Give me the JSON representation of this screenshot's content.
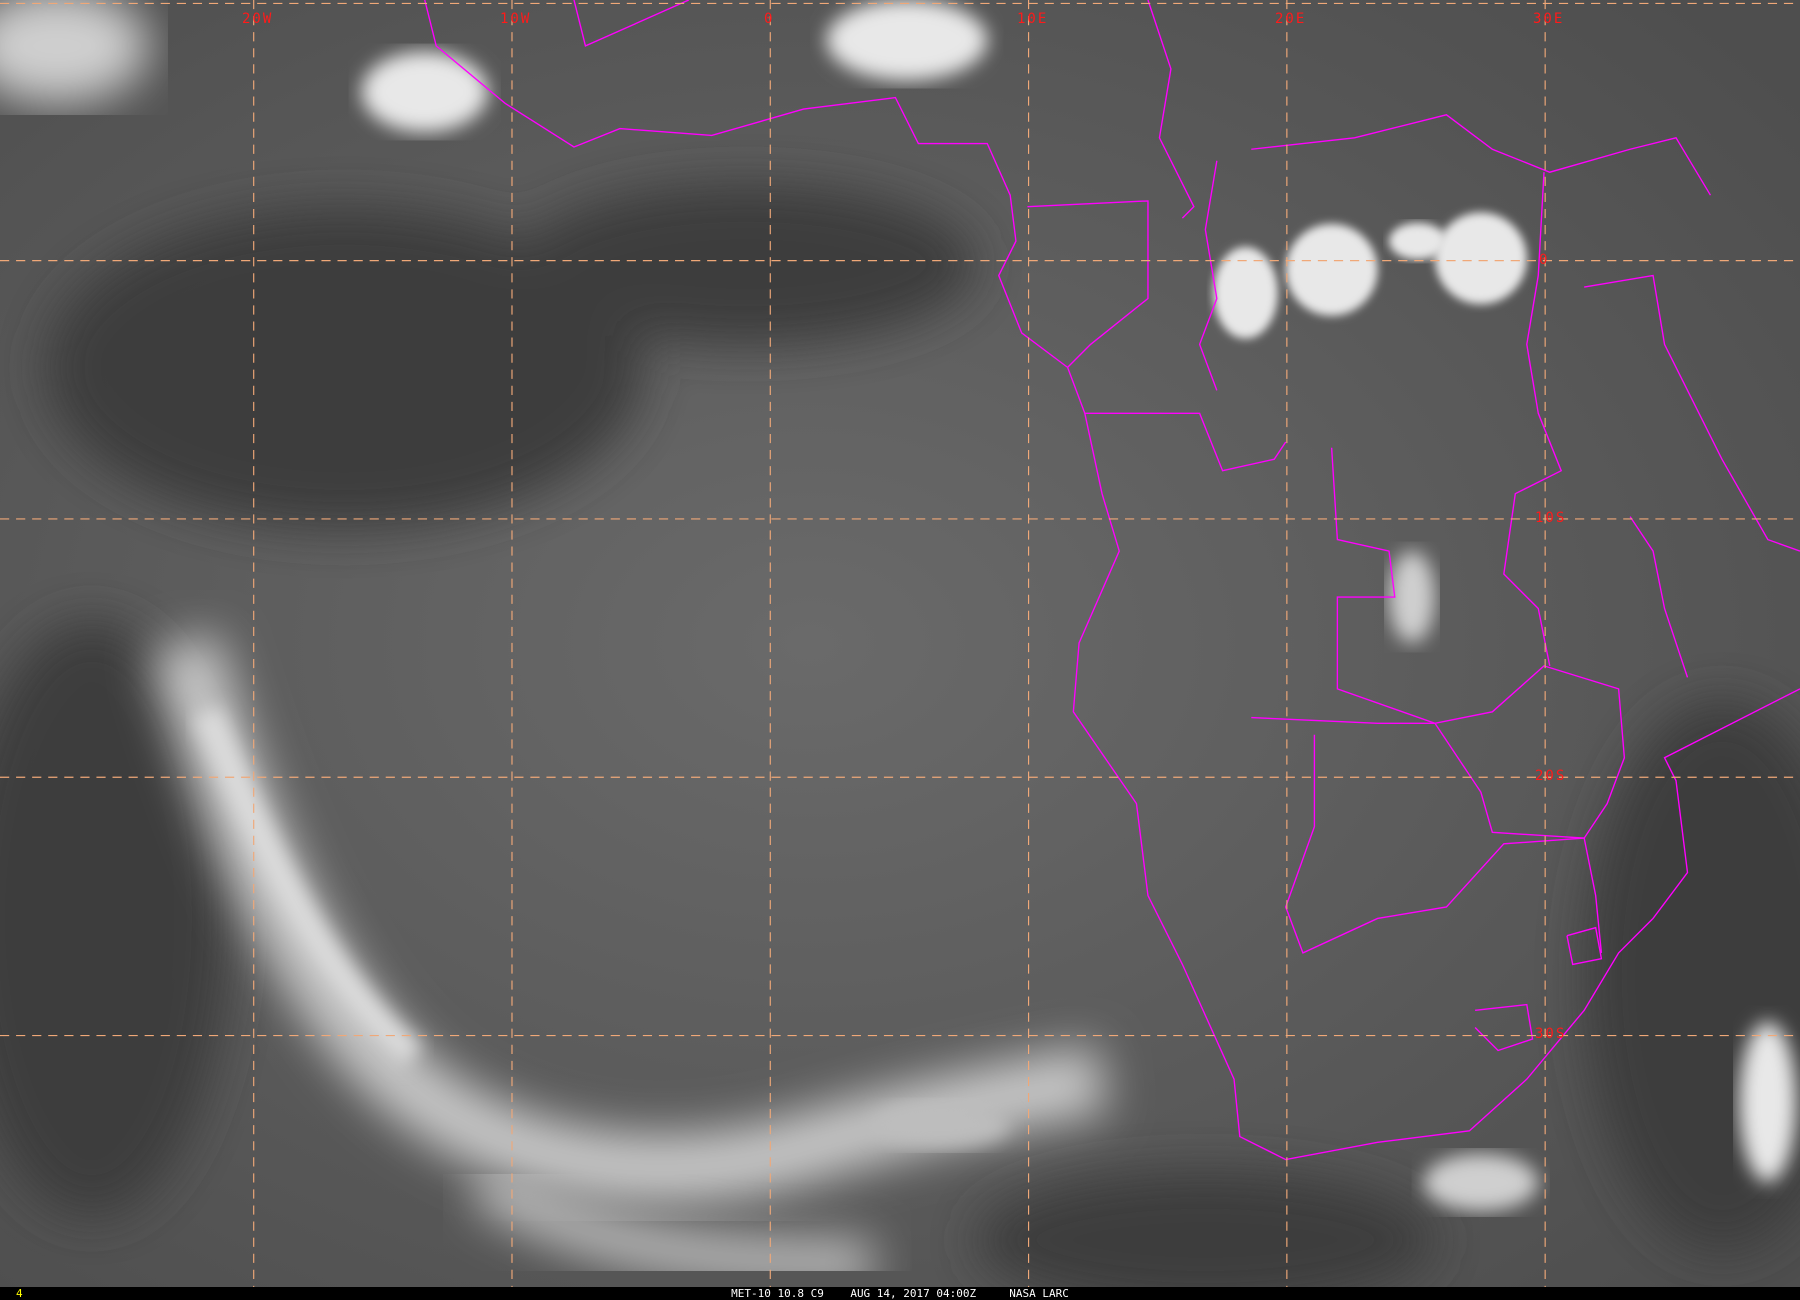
{
  "image": {
    "caption": "MET-10 10.8 C9    AUG 14, 2017 04:00Z     NASA LARC",
    "frame_number": "4",
    "longitude_labels": [
      "20W",
      "10W",
      "0",
      "10E",
      "20E",
      "30E"
    ],
    "latitude_labels": [
      "0",
      "10S",
      "20S",
      "30S"
    ],
    "colors": {
      "grid": "#f0a878",
      "borders": "#ff00ff",
      "labels": "#ff1a1a",
      "frame_number": "#ffff00"
    }
  }
}
